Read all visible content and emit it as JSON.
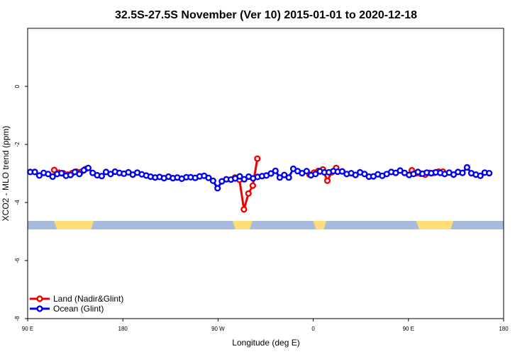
{
  "chart_data": {
    "type": "line",
    "title": "32.5S-27.5S November (Ver 10)   2015-01-01 to 2020-12-18",
    "xlabel": "Longitude (deg E)",
    "ylabel": "XCO2 - MLO trend (ppm)",
    "xlim": [
      90,
      450
    ],
    "ylim": [
      -8,
      2
    ],
    "x_ticks": [
      {
        "value": 90,
        "label": "90 E"
      },
      {
        "value": 162,
        "label": "180"
      },
      {
        "value": 234,
        "label": "90 W"
      },
      {
        "value": 306,
        "label": "0"
      },
      {
        "value": 378,
        "label": "90 E"
      },
      {
        "value": 450,
        "label": "180"
      }
    ],
    "y_ticks": [
      {
        "value": 0,
        "label": "0"
      },
      {
        "value": -2,
        "label": "-2"
      },
      {
        "value": -4,
        "label": "-4"
      },
      {
        "value": -6,
        "label": "-6"
      },
      {
        "value": -8,
        "label": "-8"
      }
    ],
    "legend_position": "bottom-left",
    "series": [
      {
        "name": "Land (Nadir&Glint)",
        "color": "#ee0000",
        "segments": [
          [
            [
              110.1,
              -2.88
            ],
            [
              113.5,
              -2.97
            ],
            [
              116.8,
              -2.99
            ],
            [
              120.2,
              -3.04
            ],
            [
              123.6,
              -2.99
            ],
            [
              126.9,
              -2.94
            ],
            [
              130.3,
              -2.95
            ],
            [
              133.7,
              -2.85
            ]
          ],
          [
            [
              246.8,
              -3.14
            ],
            [
              250.2,
              -3.22
            ],
            [
              253.6,
              -4.24
            ],
            [
              257.0,
              -3.69
            ],
            [
              260.3,
              -3.42
            ],
            [
              263.7,
              -2.49
            ]
          ],
          [
            [
              303.2,
              -3.04
            ],
            [
              306.6,
              -2.97
            ],
            [
              309.9,
              -2.91
            ],
            [
              313.3,
              -2.86
            ],
            [
              316.7,
              -3.25
            ],
            [
              320.0,
              -2.96
            ],
            [
              323.4,
              -2.81
            ]
          ],
          [
            [
              380.6,
              -2.89
            ],
            [
              383.9,
              -2.99
            ],
            [
              387.3,
              -3.01
            ],
            [
              390.7,
              -3.04
            ],
            [
              394.0,
              -2.98
            ],
            [
              397.4,
              -2.98
            ],
            [
              400.8,
              -2.94
            ],
            [
              404.1,
              -2.94
            ]
          ]
        ]
      },
      {
        "name": "Ocean (Glint)",
        "color": "#0000ee",
        "segments": [
          [
            [
              92.0,
              -2.95
            ],
            [
              95.4,
              -2.95
            ],
            [
              98.8,
              -3.07
            ],
            [
              102.1,
              -2.98
            ],
            [
              105.5,
              -3.02
            ],
            [
              108.9,
              -3.11
            ],
            [
              112.3,
              -3.02
            ],
            [
              115.6,
              -2.99
            ],
            [
              119.0,
              -3.08
            ],
            [
              122.4,
              -3.05
            ],
            [
              125.7,
              -2.95
            ],
            [
              129.1,
              -3.02
            ],
            [
              132.5,
              -2.89
            ],
            [
              135.8,
              -2.81
            ],
            [
              139.2,
              -2.98
            ],
            [
              142.6,
              -3.06
            ],
            [
              146.0,
              -3.09
            ],
            [
              149.3,
              -2.95
            ],
            [
              152.7,
              -3.02
            ],
            [
              156.1,
              -2.94
            ],
            [
              159.4,
              -2.98
            ],
            [
              162.8,
              -3.01
            ],
            [
              166.2,
              -2.96
            ],
            [
              169.5,
              -3.04
            ],
            [
              172.9,
              -2.97
            ],
            [
              176.3,
              -3.03
            ],
            [
              179.7,
              -3.07
            ],
            [
              183.0,
              -3.11
            ],
            [
              186.4,
              -3.14
            ],
            [
              189.8,
              -3.12
            ],
            [
              193.1,
              -3.16
            ],
            [
              196.5,
              -3.11
            ],
            [
              199.9,
              -3.16
            ],
            [
              203.2,
              -3.14
            ],
            [
              206.6,
              -3.18
            ],
            [
              210.0,
              -3.13
            ],
            [
              213.3,
              -3.13
            ],
            [
              216.7,
              -3.15
            ],
            [
              220.1,
              -3.1
            ],
            [
              223.5,
              -3.08
            ],
            [
              226.8,
              -3.15
            ],
            [
              230.2,
              -3.25
            ],
            [
              233.6,
              -3.51
            ],
            [
              236.9,
              -3.27
            ],
            [
              240.3,
              -3.2
            ],
            [
              243.7,
              -3.21
            ],
            [
              247.0,
              -3.17
            ],
            [
              250.4,
              -3.1
            ],
            [
              253.8,
              -3.2
            ],
            [
              257.2,
              -3.11
            ],
            [
              260.5,
              -3.17
            ],
            [
              263.9,
              -3.12
            ],
            [
              267.3,
              -3.09
            ],
            [
              270.6,
              -3.07
            ],
            [
              274.0,
              -3.0
            ],
            [
              277.4,
              -2.91
            ],
            [
              280.7,
              -3.14
            ],
            [
              284.1,
              -3.05
            ],
            [
              287.5,
              -3.14
            ],
            [
              290.9,
              -2.84
            ],
            [
              294.2,
              -2.92
            ],
            [
              297.6,
              -2.99
            ],
            [
              301.0,
              -2.92
            ],
            [
              304.3,
              -3.06
            ],
            [
              307.7,
              -3.02
            ],
            [
              311.1,
              -2.93
            ],
            [
              314.4,
              -2.96
            ],
            [
              317.8,
              -2.96
            ],
            [
              321.2,
              -2.92
            ],
            [
              324.5,
              -2.94
            ],
            [
              327.9,
              -2.93
            ],
            [
              331.3,
              -3.02
            ],
            [
              334.7,
              -2.99
            ],
            [
              338.0,
              -3.05
            ],
            [
              341.4,
              -2.96
            ],
            [
              344.8,
              -3.02
            ],
            [
              348.1,
              -3.11
            ],
            [
              351.5,
              -3.1
            ],
            [
              354.9,
              -3.03
            ],
            [
              358.2,
              -3.08
            ],
            [
              361.6,
              -3.02
            ],
            [
              365.0,
              -2.95
            ],
            [
              368.4,
              -2.98
            ],
            [
              371.7,
              -2.9
            ],
            [
              375.1,
              -2.98
            ],
            [
              378.5,
              -3.05
            ],
            [
              381.8,
              -3.02
            ],
            [
              385.2,
              -2.95
            ],
            [
              388.6,
              -3.01
            ],
            [
              391.9,
              -2.97
            ],
            [
              395.3,
              -2.99
            ],
            [
              398.7,
              -2.96
            ],
            [
              402.1,
              -2.98
            ],
            [
              405.4,
              -3.02
            ],
            [
              408.8,
              -2.97
            ],
            [
              412.2,
              -3.04
            ],
            [
              415.5,
              -2.95
            ],
            [
              418.9,
              -2.98
            ],
            [
              422.3,
              -2.79
            ],
            [
              425.6,
              -2.99
            ],
            [
              429.0,
              -3.04
            ],
            [
              432.4,
              -3.08
            ],
            [
              435.7,
              -2.97
            ],
            [
              439.1,
              -2.99
            ]
          ]
        ]
      }
    ],
    "surface_strip": {
      "y_value": -4.78,
      "ocean_color": "#a8bbdd",
      "land_color": "#ffdd77",
      "land_ranges": [
        [
          110,
          140
        ],
        [
          245,
          260
        ],
        [
          306,
          316
        ],
        [
          384,
          412
        ]
      ]
    }
  }
}
